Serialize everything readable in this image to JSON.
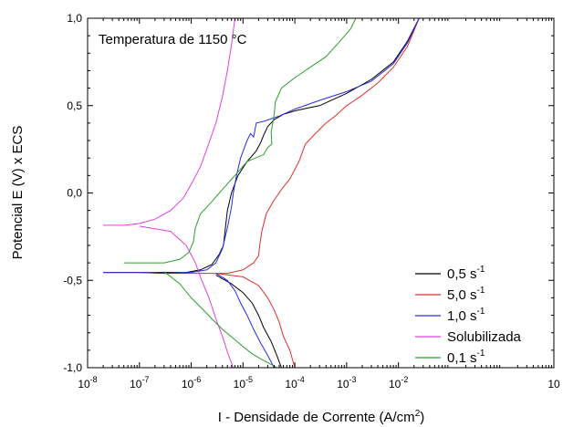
{
  "chart_data": {
    "type": "line",
    "annotation": "Temperatura de 1150 °C",
    "xlabel_main": "I - Densidade de Corrente (A/cm",
    "xlabel_sup": "2",
    "xlabel_end": ")",
    "ylabel": "Potencial E (V) x ECS",
    "x_scale": "log",
    "xlim": [
      1e-08,
      10
    ],
    "ylim": [
      -1.0,
      1.0
    ],
    "x_ticks": [
      {
        "value": 1e-08,
        "base": "10",
        "exp": "-8"
      },
      {
        "value": 1e-07,
        "base": "10",
        "exp": "-7"
      },
      {
        "value": 1e-06,
        "base": "10",
        "exp": "-6"
      },
      {
        "value": 1e-05,
        "base": "10",
        "exp": "-5"
      },
      {
        "value": 0.0001,
        "base": "10",
        "exp": "-4"
      },
      {
        "value": 0.001,
        "base": "10",
        "exp": "-3"
      },
      {
        "value": 0.01,
        "base": "10",
        "exp": "-2"
      },
      {
        "value": 10,
        "base": "10",
        "exp": ""
      }
    ],
    "y_ticks": [
      {
        "value": 1.0,
        "label": "1,0"
      },
      {
        "value": 0.5,
        "label": "0,5"
      },
      {
        "value": 0.0,
        "label": "0,0"
      },
      {
        "value": -0.5,
        "label": "-0,5"
      },
      {
        "value": -1.0,
        "label": "-1,0"
      }
    ],
    "legend_position": "bottom-right",
    "series": [
      {
        "name": "0,5 s",
        "name_sup": "-1",
        "color": "#000000",
        "points": [
          [
            2e-08,
            -0.455
          ],
          [
            1e-07,
            -0.455
          ],
          [
            3e-07,
            -0.455
          ],
          [
            8e-07,
            -0.455
          ],
          [
            1.5e-06,
            -0.44
          ],
          [
            2.5e-06,
            -0.41
          ],
          [
            3.5e-06,
            -0.35
          ],
          [
            4.2e-06,
            -0.3
          ],
          [
            4.5e-06,
            -0.22
          ],
          [
            5e-06,
            -0.1
          ],
          [
            6e-06,
            0.0
          ],
          [
            8e-06,
            0.1
          ],
          [
            1.2e-05,
            0.18
          ],
          [
            1.8e-05,
            0.24
          ],
          [
            2.2e-05,
            0.29
          ],
          [
            2.5e-05,
            0.33
          ],
          [
            3e-05,
            0.38
          ],
          [
            4e-05,
            0.42
          ],
          [
            6e-05,
            0.45
          ],
          [
            0.0001,
            0.47
          ],
          [
            0.0002,
            0.49
          ],
          [
            0.0003,
            0.5
          ],
          [
            0.001,
            0.57
          ],
          [
            0.003,
            0.65
          ],
          [
            0.008,
            0.75
          ],
          [
            0.015,
            0.87
          ],
          [
            0.025,
            1.0
          ]
        ],
        "cathodic": [
          [
            3e-06,
            -0.47
          ],
          [
            6e-06,
            -0.52
          ],
          [
            1e-05,
            -0.57
          ],
          [
            1.5e-05,
            -0.63
          ],
          [
            2e-05,
            -0.7
          ],
          [
            2.5e-05,
            -0.77
          ],
          [
            3.5e-05,
            -0.85
          ],
          [
            4.5e-05,
            -0.93
          ],
          [
            5.5e-05,
            -1.0
          ]
        ]
      },
      {
        "name": "5,0 s",
        "name_sup": "-1",
        "color": "#e0302a",
        "points": [
          [
            2e-08,
            -0.455
          ],
          [
            1e-07,
            -0.455
          ],
          [
            3e-07,
            -0.46
          ],
          [
            7e-07,
            -0.46
          ],
          [
            2e-06,
            -0.46
          ],
          [
            5e-06,
            -0.46
          ],
          [
            1e-05,
            -0.44
          ],
          [
            1.6e-05,
            -0.4
          ],
          [
            2e-05,
            -0.36
          ],
          [
            2.1e-05,
            -0.3
          ],
          [
            2.3e-05,
            -0.22
          ],
          [
            2.8e-05,
            -0.12
          ],
          [
            3.8e-05,
            -0.05
          ],
          [
            5.5e-05,
            0.02
          ],
          [
            8e-05,
            0.08
          ],
          [
            0.00012,
            0.18
          ],
          [
            0.00016,
            0.28
          ],
          [
            0.00025,
            0.34
          ],
          [
            0.0004,
            0.4
          ],
          [
            0.0006,
            0.44
          ],
          [
            0.001,
            0.5
          ],
          [
            0.002,
            0.56
          ],
          [
            0.004,
            0.63
          ],
          [
            0.008,
            0.72
          ],
          [
            0.015,
            0.84
          ],
          [
            0.025,
            1.0
          ]
        ],
        "cathodic": [
          [
            3e-06,
            -0.46
          ],
          [
            1e-05,
            -0.48
          ],
          [
            2e-05,
            -0.53
          ],
          [
            3e-05,
            -0.6
          ],
          [
            4e-05,
            -0.67
          ],
          [
            5e-05,
            -0.74
          ],
          [
            6e-05,
            -0.82
          ],
          [
            8e-05,
            -0.9
          ],
          [
            0.0001,
            -1.0
          ]
        ]
      },
      {
        "name": "1,0 s",
        "name_sup": "-1",
        "color": "#2a2ae0",
        "points": [
          [
            2e-08,
            -0.455
          ],
          [
            1e-07,
            -0.455
          ],
          [
            3e-07,
            -0.46
          ],
          [
            1e-06,
            -0.455
          ],
          [
            2e-06,
            -0.44
          ],
          [
            3e-06,
            -0.4
          ],
          [
            4e-06,
            -0.32
          ],
          [
            5e-06,
            -0.2
          ],
          [
            6e-06,
            -0.08
          ],
          [
            6.5e-06,
            0.0
          ],
          [
            7.5e-06,
            0.1
          ],
          [
            9e-06,
            0.2
          ],
          [
            1.2e-05,
            0.3
          ],
          [
            1.4e-05,
            0.34
          ],
          [
            1.6e-05,
            0.32
          ],
          [
            1.7e-05,
            0.36
          ],
          [
            1.8e-05,
            0.4
          ],
          [
            2.5e-05,
            0.41
          ],
          [
            5e-05,
            0.44
          ],
          [
            0.0001,
            0.48
          ],
          [
            0.0003,
            0.53
          ],
          [
            0.001,
            0.58
          ],
          [
            0.003,
            0.64
          ],
          [
            0.008,
            0.74
          ],
          [
            0.015,
            0.86
          ],
          [
            0.025,
            1.0
          ]
        ],
        "cathodic": [
          [
            3e-06,
            -0.46
          ],
          [
            5e-06,
            -0.5
          ],
          [
            7e-06,
            -0.56
          ],
          [
            9e-06,
            -0.63
          ],
          [
            1.2e-05,
            -0.7
          ],
          [
            1.6e-05,
            -0.78
          ],
          [
            2.2e-05,
            -0.86
          ],
          [
            3e-05,
            -0.93
          ],
          [
            4e-05,
            -1.0
          ]
        ]
      },
      {
        "name": "Solubilizada",
        "name_sup": "",
        "color": "#e040e0",
        "points": [
          [
            2e-08,
            -0.185
          ],
          [
            5e-08,
            -0.185
          ],
          [
            1e-07,
            -0.175
          ],
          [
            2e-07,
            -0.15
          ],
          [
            4e-07,
            -0.1
          ],
          [
            7e-07,
            -0.03
          ],
          [
            1e-06,
            0.05
          ],
          [
            1.5e-06,
            0.15
          ],
          [
            2e-06,
            0.25
          ],
          [
            3e-06,
            0.4
          ],
          [
            4e-06,
            0.55
          ],
          [
            5e-06,
            0.7
          ],
          [
            6e-06,
            0.85
          ],
          [
            7e-06,
            1.0
          ]
        ],
        "cathodic": [
          [
            1e-07,
            -0.19
          ],
          [
            4e-07,
            -0.22
          ],
          [
            8e-07,
            -0.3
          ],
          [
            1.2e-06,
            -0.4
          ],
          [
            1.6e-06,
            -0.5
          ],
          [
            2.2e-06,
            -0.6
          ],
          [
            3e-06,
            -0.72
          ],
          [
            4e-06,
            -0.82
          ],
          [
            5e-06,
            -0.91
          ],
          [
            6.5e-06,
            -1.0
          ]
        ]
      },
      {
        "name": "0,1 s",
        "name_sup": "-1",
        "color": "#2e9e2e",
        "points": [
          [
            5e-08,
            -0.4
          ],
          [
            1e-07,
            -0.4
          ],
          [
            3e-07,
            -0.4
          ],
          [
            6e-07,
            -0.38
          ],
          [
            9e-07,
            -0.34
          ],
          [
            1.1e-06,
            -0.28
          ],
          [
            1.2e-06,
            -0.2
          ],
          [
            1.5e-06,
            -0.12
          ],
          [
            2.5e-06,
            -0.05
          ],
          [
            4e-06,
            0.02
          ],
          [
            7e-06,
            0.1
          ],
          [
            1.2e-05,
            0.18
          ],
          [
            2.5e-05,
            0.22
          ],
          [
            3e-05,
            0.26
          ],
          [
            3.6e-05,
            0.28
          ],
          [
            3.5e-05,
            0.35
          ],
          [
            4e-05,
            0.45
          ],
          [
            4.2e-05,
            0.52
          ],
          [
            5.5e-05,
            0.6
          ],
          [
            0.0001,
            0.66
          ],
          [
            0.0002,
            0.72
          ],
          [
            0.0004,
            0.78
          ],
          [
            0.0007,
            0.86
          ],
          [
            0.0012,
            0.94
          ],
          [
            0.0015,
            1.0
          ]
        ],
        "cathodic": [
          [
            3e-07,
            -0.45
          ],
          [
            6e-07,
            -0.52
          ],
          [
            1e-06,
            -0.6
          ],
          [
            1.6e-06,
            -0.66
          ],
          [
            2.5e-06,
            -0.72
          ],
          [
            4e-06,
            -0.78
          ],
          [
            7e-06,
            -0.84
          ],
          [
            1.1e-05,
            -0.89
          ],
          [
            1.5e-05,
            -0.92
          ],
          [
            2.2e-05,
            -0.95
          ],
          [
            3e-05,
            -0.97
          ],
          [
            4.5e-05,
            -1.0
          ]
        ]
      }
    ]
  }
}
